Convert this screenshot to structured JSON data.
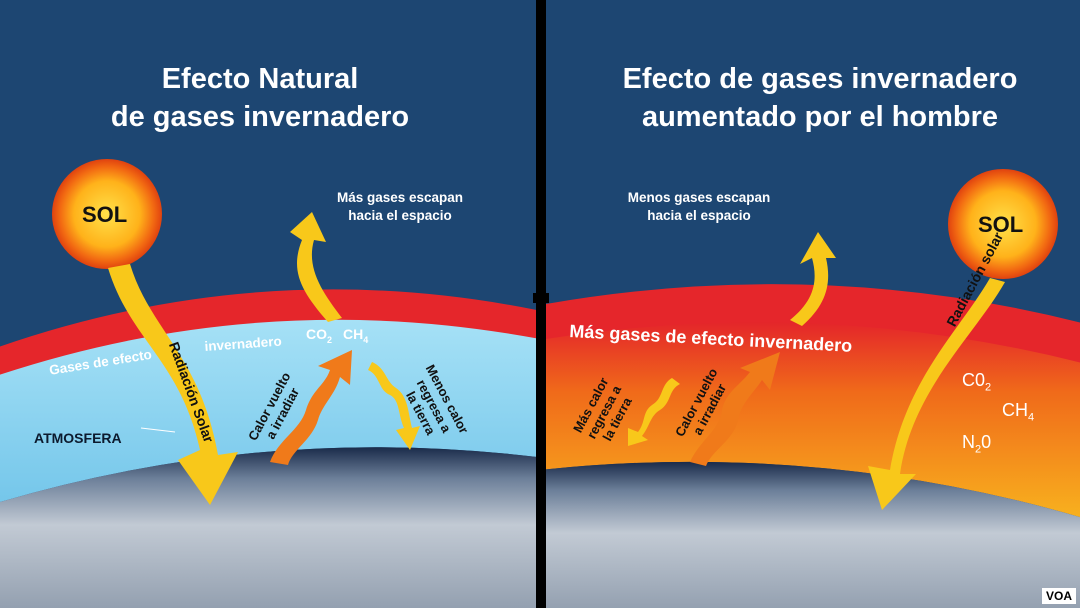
{
  "left": {
    "title_line1": "Efecto Natural",
    "title_line2": "de gases invernadero",
    "sun": "SOL",
    "escape_line1": "Más gases escapan",
    "escape_line2": "hacia el espacio",
    "band_label": "Gases de efecto",
    "band_label2": "invernadero",
    "co2": "CO",
    "co2_sub": "2",
    "ch4": "CH",
    "ch4_sub": "4",
    "solar_radiation": "Radiación Solar",
    "atmosphere": "ATMOSFERA",
    "reradiate_line1": "Calor vuelto",
    "reradiate_line2": "a irradiar",
    "return_line1": "Menos calor",
    "return_line2": "regresa a",
    "return_line3": "la tierra"
  },
  "right": {
    "title_line1": "Efecto de gases invernadero",
    "title_line2": "aumentado por el hombre",
    "sun": "SOL",
    "escape_line1": "Menos gases escapan",
    "escape_line2": "hacia el espacio",
    "band_label": "Más gases de efecto invernadero",
    "solar_radiation": "Radiación solar",
    "gas1": "C0",
    "gas1_sub": "2",
    "gas2": "CH",
    "gas2_sub": "4",
    "gas3": "N",
    "gas3_sub": "2",
    "gas3_end": "0",
    "return_line1": "Más calor",
    "return_line2": "regresa a",
    "return_line3": "la tierra",
    "reradiate_line1": "Calor vuelto",
    "reradiate_line2": "a irradiar"
  },
  "badge": "VOA",
  "colors": {
    "sky": "#1d4672",
    "arrow": "#f8c81a",
    "red_band": "#e5262b",
    "atmosphere_light": "#7fd0ef"
  }
}
